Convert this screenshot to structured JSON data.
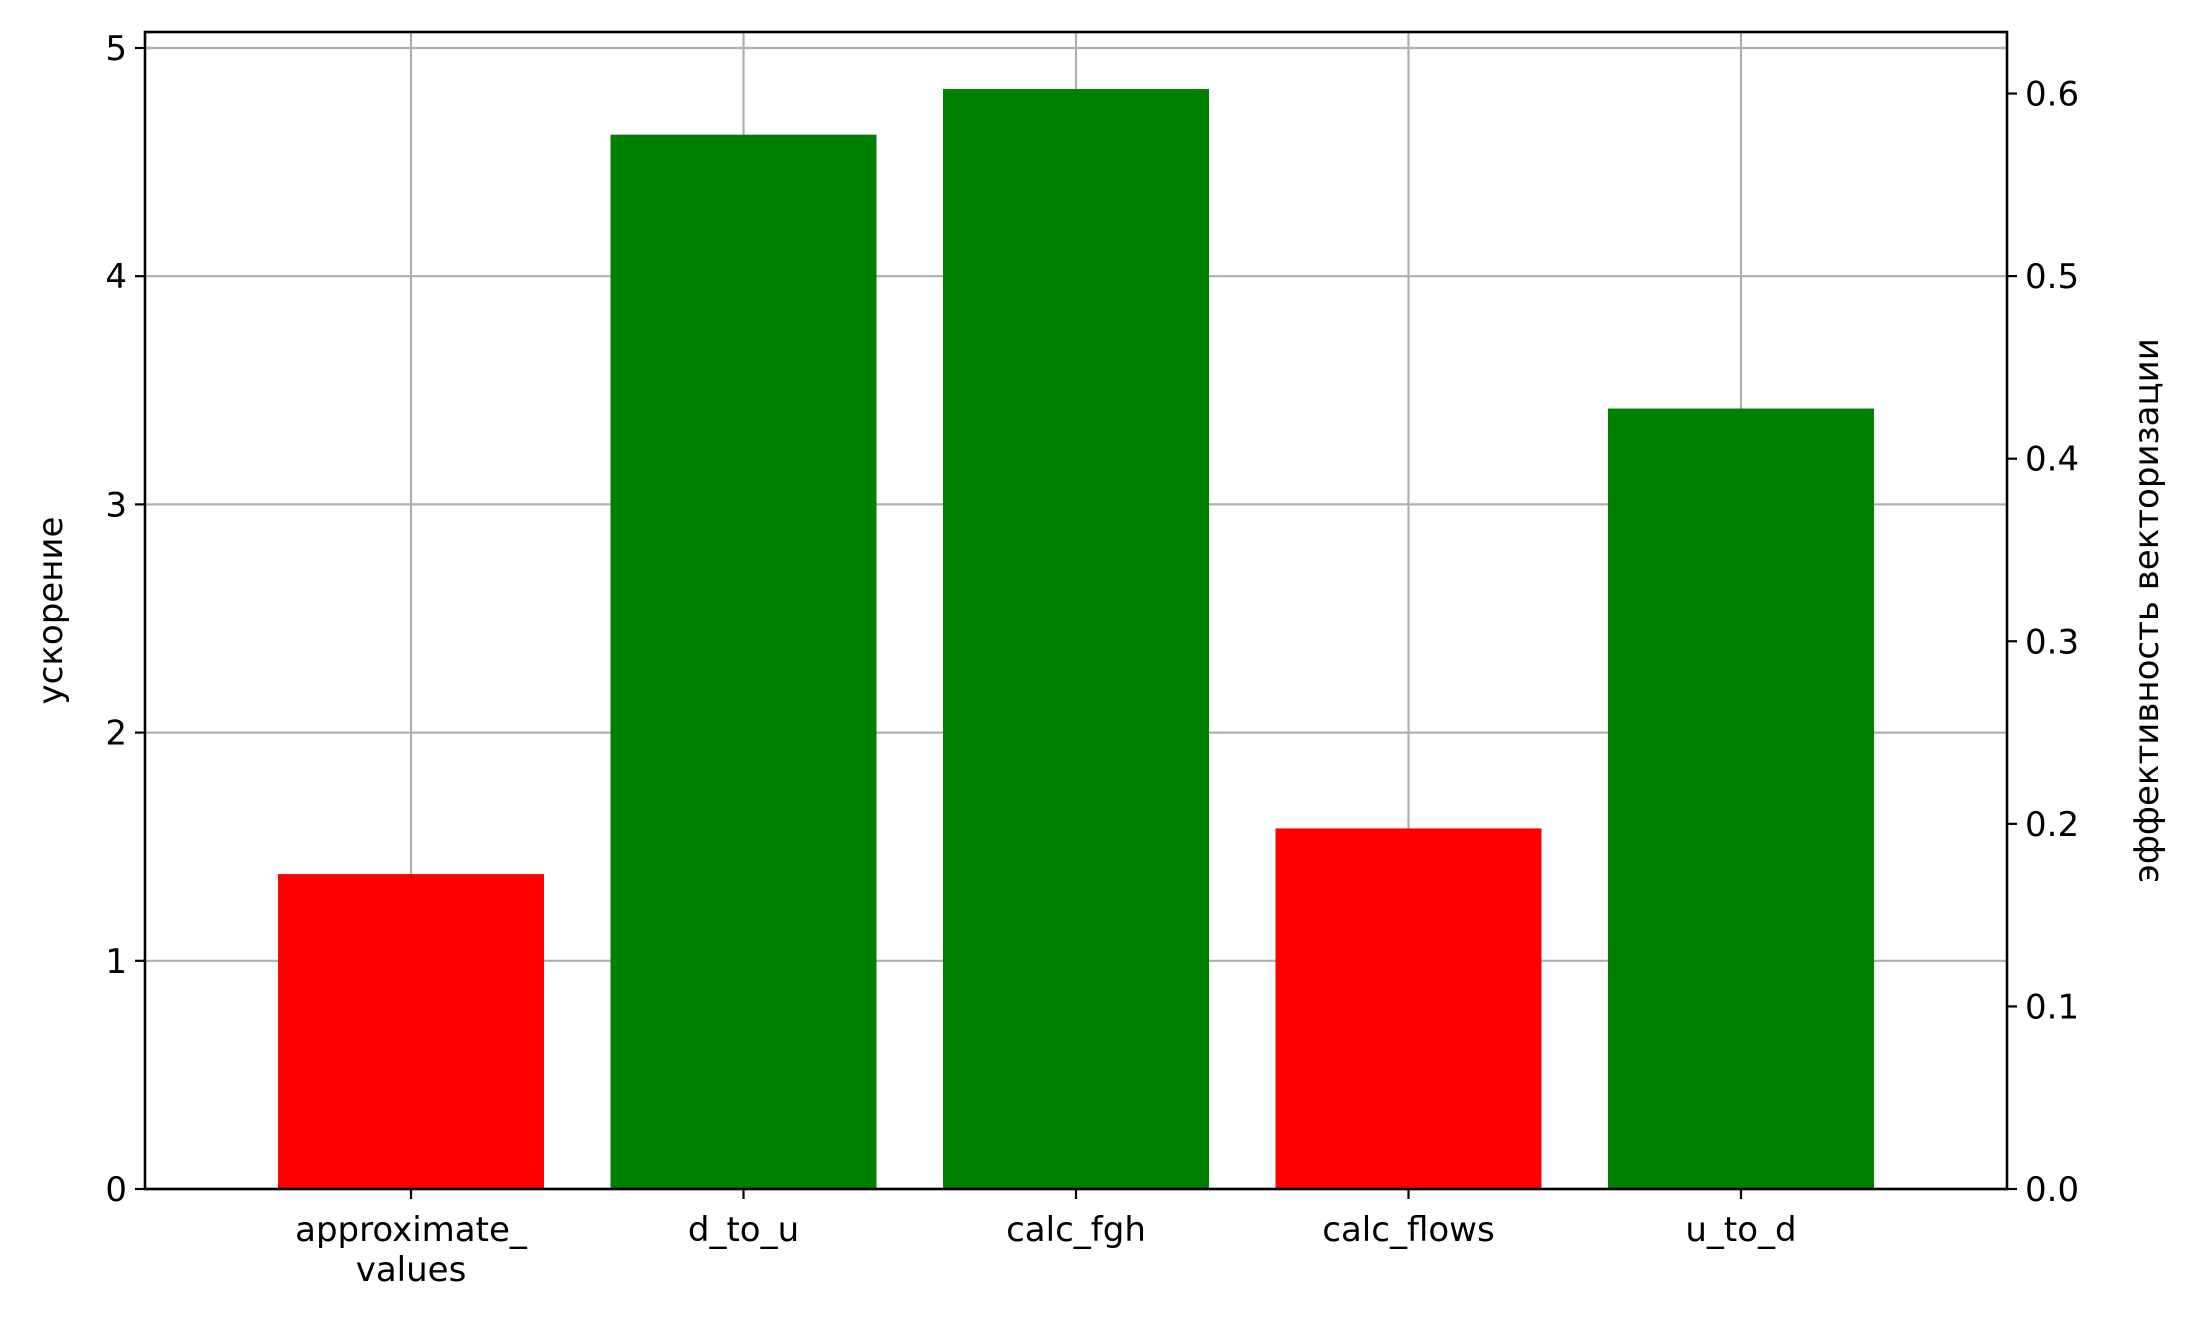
{
  "chart_data": {
    "type": "bar",
    "categories": [
      [
        "approximate_",
        "values"
      ],
      [
        "d_to_u"
      ],
      [
        "calc_fgh"
      ],
      [
        "calc_flows"
      ],
      [
        "u_to_d"
      ]
    ],
    "values": [
      1.38,
      4.62,
      4.82,
      1.58,
      3.42
    ],
    "colors": [
      "#ff0000",
      "#008000",
      "#008000",
      "#ff0000",
      "#008000"
    ],
    "ylabel": "ускорение",
    "y2label": "эффективность векторизации",
    "ylim": [
      0,
      5.07
    ],
    "y2lim": [
      0,
      0.6337
    ],
    "yticks": [
      "0",
      "1",
      "2",
      "3",
      "4",
      "5"
    ],
    "y2ticks": [
      "0.0",
      "0.1",
      "0.2",
      "0.3",
      "0.4",
      "0.5",
      "0.6"
    ],
    "grid": true
  }
}
